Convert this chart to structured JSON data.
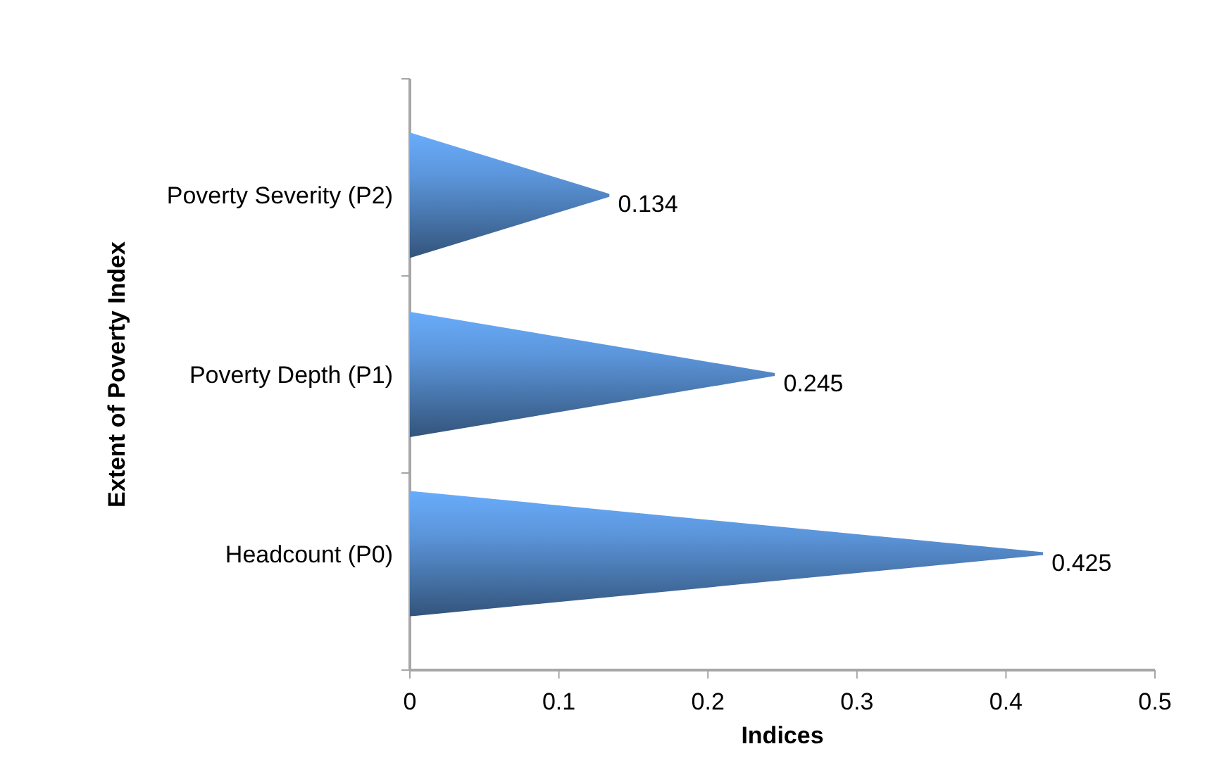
{
  "chart_data": {
    "type": "bar",
    "orientation": "horizontal",
    "xlabel": "Indices",
    "ylabel": "Extent of Poverty Index",
    "categories": [
      "Poverty Severity (P2)",
      "Poverty Depth (P1)",
      "Headcount (P0)"
    ],
    "values": [
      0.134,
      0.245,
      0.425
    ],
    "color": "#4f81bd",
    "xlim": [
      0,
      0.5
    ],
    "xticks": [
      0,
      0.1,
      0.2,
      0.3,
      0.4,
      0.5
    ],
    "data_labels": true,
    "grid": false
  }
}
